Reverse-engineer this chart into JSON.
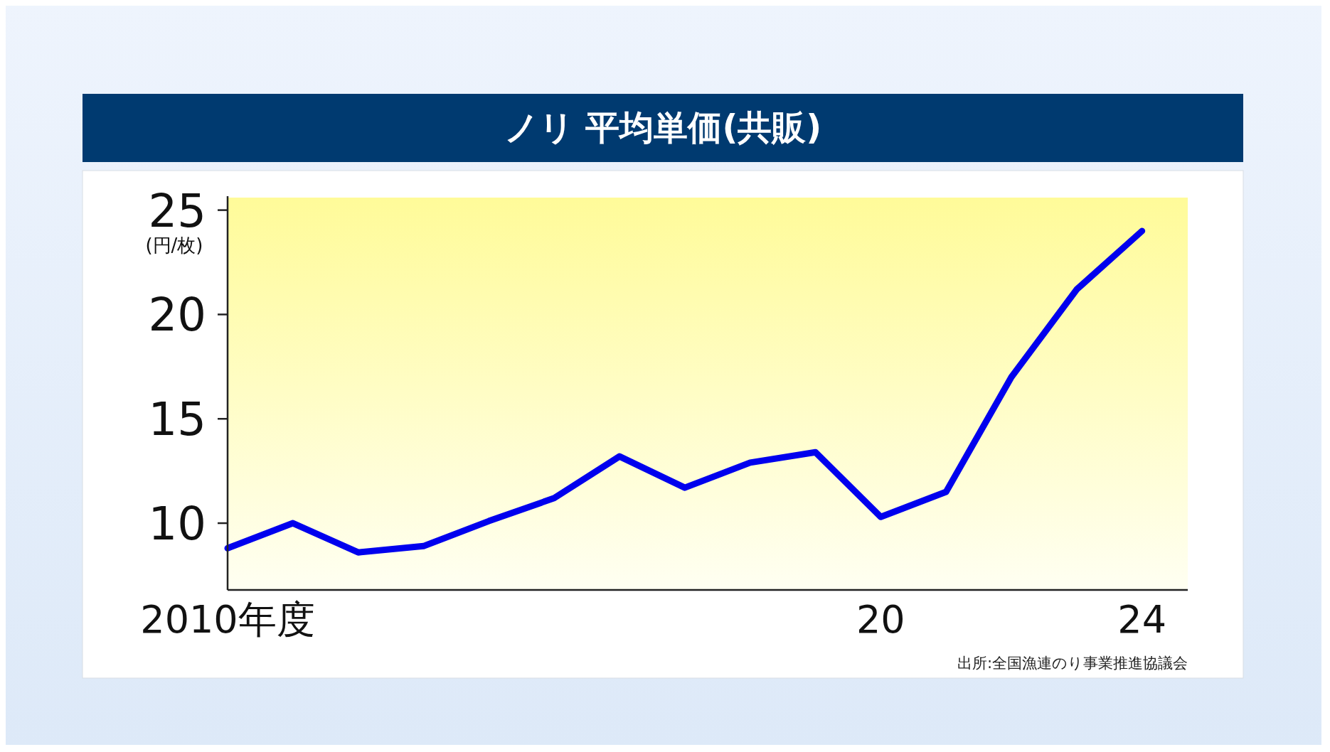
{
  "chart_data": {
    "type": "line",
    "title": "ノリ 平均単価(共販)",
    "ylabel": "(円/枚)",
    "x": [
      2010,
      2011,
      2012,
      2013,
      2014,
      2015,
      2016,
      2017,
      2018,
      2019,
      2020,
      2021,
      2022,
      2023,
      2024
    ],
    "series": [
      {
        "color": "#0000ee",
        "values": [
          8.8,
          10.0,
          8.6,
          8.9,
          10.1,
          11.2,
          13.2,
          11.7,
          12.9,
          13.4,
          10.3,
          11.5,
          17.0,
          21.2,
          24.0
        ]
      }
    ],
    "xlim": [
      2010,
      2024.7
    ],
    "xticks": [
      {
        "value": 2010,
        "label": "2010年度"
      },
      {
        "value": 2020,
        "label": "20"
      },
      {
        "value": 2024,
        "label": "24"
      }
    ],
    "ylim": [
      6.8,
      25.6
    ],
    "yticks": [
      10,
      15,
      20,
      25
    ],
    "annotations": [
      "出所:全国漁連のり事業推進協議会"
    ]
  }
}
